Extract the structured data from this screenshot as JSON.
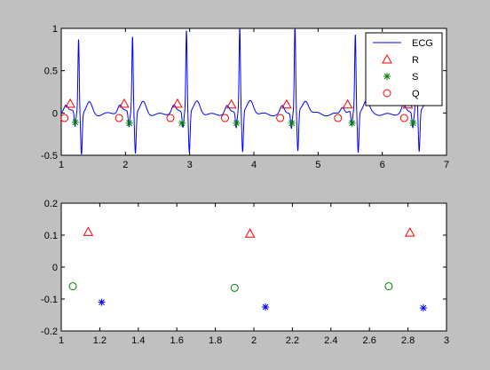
{
  "chart_data": [
    {
      "type": "line",
      "xlim": [
        1,
        7
      ],
      "ylim": [
        -0.5,
        1
      ],
      "xticks": [
        "1",
        "2",
        "3",
        "4",
        "5",
        "6",
        "7"
      ],
      "yticks": [
        "-0.5",
        "0",
        "0.5",
        "1"
      ],
      "grid": false,
      "legend_position": "top-right",
      "legend": [
        "ECG",
        "R",
        "S",
        "Q"
      ],
      "series": [
        {
          "name": "ECG",
          "style": "line",
          "color": "#0000ff"
        },
        {
          "name": "R",
          "style": "triangle",
          "color": "#ff0000",
          "x": [
            1.14,
            1.98,
            2.81,
            3.65,
            4.51,
            5.46,
            6.4
          ],
          "y": [
            0.11,
            0.11,
            0.11,
            0.1,
            0.1,
            0.1,
            0.1
          ]
        },
        {
          "name": "S",
          "style": "star",
          "color": "#008000",
          "x": [
            1.22,
            2.06,
            2.88,
            3.73,
            4.59,
            5.53,
            6.48
          ],
          "y": [
            -0.11,
            -0.12,
            -0.12,
            -0.12,
            -0.12,
            -0.12,
            -0.12
          ]
        },
        {
          "name": "Q",
          "style": "circle",
          "color": "#ff0000",
          "x": [
            1.05,
            1.9,
            2.7,
            3.55,
            4.41,
            5.31,
            6.34
          ],
          "y": [
            -0.06,
            -0.06,
            -0.06,
            -0.06,
            -0.06,
            -0.06,
            -0.06
          ]
        }
      ],
      "ecg_beats": [
        {
          "r": 1.27,
          "amp": 0.87
        },
        {
          "r": 2.11,
          "amp": 0.9
        },
        {
          "r": 2.95,
          "amp": 0.97
        },
        {
          "r": 3.78,
          "amp": 1.0
        },
        {
          "r": 4.64,
          "amp": 1.02
        },
        {
          "r": 5.58,
          "amp": 0.9
        },
        {
          "r": 6.53,
          "amp": 0.87
        }
      ],
      "ecg_x_end": 6.72
    },
    {
      "type": "scatter",
      "xlim": [
        1,
        3
      ],
      "ylim": [
        -0.2,
        0.2
      ],
      "xticks": [
        "1",
        "1.2",
        "1.4",
        "1.6",
        "1.8",
        "2",
        "2.2",
        "2.4",
        "2.6",
        "2.8",
        "3"
      ],
      "yticks": [
        "-0.2",
        "-0.1",
        "0",
        "0.1",
        "0.2"
      ],
      "grid": false,
      "series": [
        {
          "style": "triangle",
          "color": "#ff0000",
          "x": [
            1.14,
            1.98,
            2.81
          ],
          "y": [
            0.11,
            0.105,
            0.108
          ]
        },
        {
          "style": "star",
          "color": "#0000ff",
          "x": [
            1.21,
            2.06,
            2.88
          ],
          "y": [
            -0.11,
            -0.125,
            -0.128
          ]
        },
        {
          "style": "circle",
          "color": "#008000",
          "x": [
            1.06,
            1.9,
            2.7
          ],
          "y": [
            -0.06,
            -0.065,
            -0.06
          ]
        }
      ]
    }
  ]
}
